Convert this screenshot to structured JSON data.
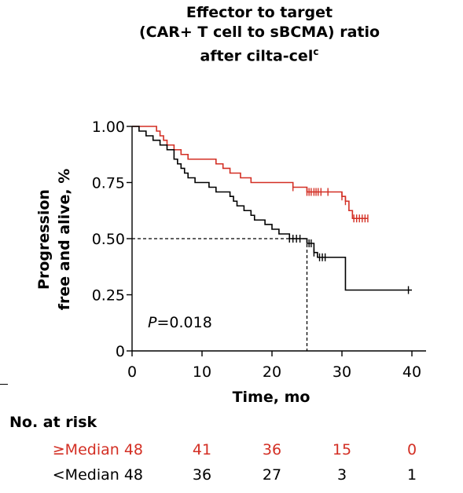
{
  "chart_data": {
    "type": "line",
    "title_lines": [
      "Effector to target",
      "(CAR+ T cell to sBCMA) ratio",
      "after cilta-cel"
    ],
    "title_superscript": "c",
    "xlabel": "Time, mo",
    "ylabel_lines": [
      "Progression",
      "free and alive, %"
    ],
    "xlim": [
      0,
      40
    ],
    "ylim": [
      0,
      1.0
    ],
    "xticks": [
      0,
      10,
      20,
      30,
      40
    ],
    "yticks": [
      0,
      0.25,
      0.5,
      0.75,
      1.0
    ],
    "xtick_labels": [
      "0",
      "10",
      "20",
      "30",
      "40"
    ],
    "ytick_labels": [
      "0",
      "0.25",
      "0.50",
      "0.75",
      "1.00"
    ],
    "grid": false,
    "annotation": {
      "prefix": "P",
      "text": "=0.018"
    },
    "median_reference": {
      "survival": 0.5,
      "time": 25.0
    },
    "series": [
      {
        "color": "#d32f24",
        "steps": [
          [
            0,
            1.0
          ],
          [
            3.5,
            0.979
          ],
          [
            4.0,
            0.958
          ],
          [
            4.5,
            0.938
          ],
          [
            5.0,
            0.917
          ],
          [
            6.0,
            0.896
          ],
          [
            7.0,
            0.875
          ],
          [
            8.0,
            0.854
          ],
          [
            12.0,
            0.833
          ],
          [
            13.0,
            0.813
          ],
          [
            14.0,
            0.792
          ],
          [
            15.5,
            0.771
          ],
          [
            17.0,
            0.75
          ],
          [
            23.0,
            0.729
          ],
          [
            25.0,
            0.708
          ],
          [
            30.0,
            0.688
          ],
          [
            30.5,
            0.667
          ],
          [
            31.0,
            0.625
          ],
          [
            31.5,
            0.59
          ]
        ],
        "censors": [
          [
            23.0,
            0.729
          ],
          [
            25.0,
            0.708
          ],
          [
            25.3,
            0.708
          ],
          [
            25.6,
            0.708
          ],
          [
            26.0,
            0.708
          ],
          [
            26.3,
            0.708
          ],
          [
            26.6,
            0.708
          ],
          [
            27.0,
            0.708
          ],
          [
            28.0,
            0.708
          ],
          [
            30.0,
            0.688
          ],
          [
            30.5,
            0.667
          ],
          [
            31.7,
            0.59
          ],
          [
            32.1,
            0.59
          ],
          [
            32.5,
            0.59
          ],
          [
            32.9,
            0.59
          ],
          [
            33.3,
            0.59
          ],
          [
            33.7,
            0.59
          ]
        ],
        "end_x": 33.7
      },
      {
        "color": "#000000",
        "steps": [
          [
            0,
            1.0
          ],
          [
            1.0,
            0.979
          ],
          [
            2.0,
            0.958
          ],
          [
            3.0,
            0.938
          ],
          [
            4.0,
            0.917
          ],
          [
            5.0,
            0.896
          ],
          [
            6.0,
            0.854
          ],
          [
            6.5,
            0.833
          ],
          [
            7.0,
            0.813
          ],
          [
            7.5,
            0.792
          ],
          [
            8.0,
            0.771
          ],
          [
            9.0,
            0.75
          ],
          [
            11.0,
            0.729
          ],
          [
            12.0,
            0.708
          ],
          [
            14.0,
            0.688
          ],
          [
            14.5,
            0.667
          ],
          [
            15.0,
            0.646
          ],
          [
            16.0,
            0.625
          ],
          [
            17.0,
            0.604
          ],
          [
            17.5,
            0.583
          ],
          [
            19.0,
            0.563
          ],
          [
            20.0,
            0.542
          ],
          [
            21.0,
            0.521
          ],
          [
            22.5,
            0.5
          ],
          [
            25.0,
            0.479
          ],
          [
            26.0,
            0.438
          ],
          [
            26.5,
            0.417
          ],
          [
            30.5,
            0.271
          ]
        ],
        "censors": [
          [
            22.5,
            0.5
          ],
          [
            23.0,
            0.5
          ],
          [
            23.5,
            0.5
          ],
          [
            24.0,
            0.5
          ],
          [
            25.3,
            0.479
          ],
          [
            25.6,
            0.479
          ],
          [
            26.0,
            0.438
          ],
          [
            26.8,
            0.417
          ],
          [
            27.2,
            0.417
          ],
          [
            27.6,
            0.417
          ],
          [
            39.5,
            0.271
          ]
        ],
        "end_x": 40.0
      }
    ]
  },
  "risk_table": {
    "header": "No. at risk",
    "rows": [
      {
        "label": "≥Median 48",
        "color": "#d32f24",
        "values": [
          "41",
          "36",
          "15",
          "0"
        ]
      },
      {
        "label": "<Median 48",
        "color": "#000000",
        "values": [
          "36",
          "27",
          "3",
          "1"
        ]
      }
    ]
  }
}
